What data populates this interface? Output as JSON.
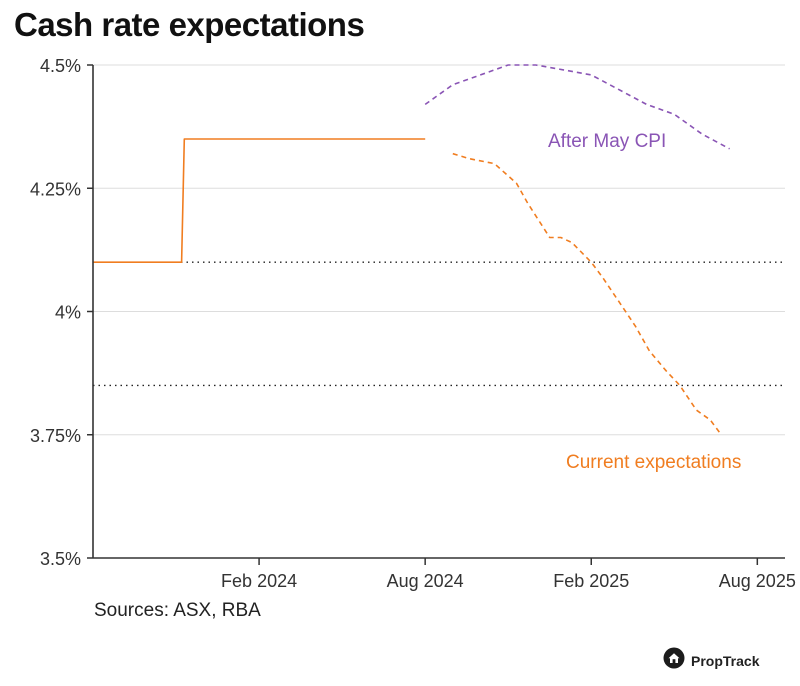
{
  "title": "Cash rate expectations",
  "sources": "Sources: ASX, RBA",
  "brand": {
    "name": "PropTrack",
    "icon": "house-logo-icon"
  },
  "colors": {
    "actual": "#f07d20",
    "current": "#f07d20",
    "after": "#8a55b5",
    "axis": "#333333",
    "grid": "#dddddd",
    "ref": "#222222"
  },
  "chart_data": {
    "type": "line",
    "title": "Cash rate expectations",
    "xlabel": "",
    "ylabel": "",
    "grid": true,
    "x_ticks": [
      "Feb 2024",
      "Aug 2024",
      "Feb 2025",
      "Aug 2025"
    ],
    "x_tick_months": [
      13,
      19,
      25,
      31
    ],
    "y_ticks": [
      3.5,
      3.75,
      4.0,
      4.25,
      4.5
    ],
    "y_tick_labels": [
      "3.5%",
      "3.75%",
      "4%",
      "4.25%",
      "4.5%"
    ],
    "ylim": [
      3.5,
      4.5
    ],
    "xlim_months": [
      7,
      32
    ],
    "reference_lines": [
      4.1,
      3.85
    ],
    "series": [
      {
        "name": "",
        "style": "solid",
        "x_months": [
          7,
          10.2,
          10.3,
          19
        ],
        "values": [
          4.1,
          4.1,
          4.35,
          4.35
        ]
      },
      {
        "name": "After May CPI",
        "style": "dashed",
        "x_months": [
          19,
          20,
          21,
          22,
          23,
          24,
          25,
          26,
          27,
          28,
          29,
          30
        ],
        "values": [
          4.42,
          4.46,
          4.48,
          4.5,
          4.5,
          4.49,
          4.48,
          4.45,
          4.42,
          4.4,
          4.36,
          4.33
        ]
      },
      {
        "name": "Current expectations",
        "style": "dashed",
        "x_months": [
          20,
          20.6,
          21.5,
          22.3,
          22.7,
          23.5,
          23.9,
          24.3,
          25,
          25.4,
          26,
          26.6,
          27.1,
          27.7,
          28.2,
          28.8,
          29.3,
          29.7
        ],
        "values": [
          4.32,
          4.31,
          4.3,
          4.26,
          4.22,
          4.15,
          4.15,
          4.14,
          4.1,
          4.07,
          4.02,
          3.97,
          3.92,
          3.88,
          3.85,
          3.8,
          3.78,
          3.75
        ]
      }
    ],
    "annotations": [
      "After May CPI",
      "Current expectations"
    ]
  }
}
